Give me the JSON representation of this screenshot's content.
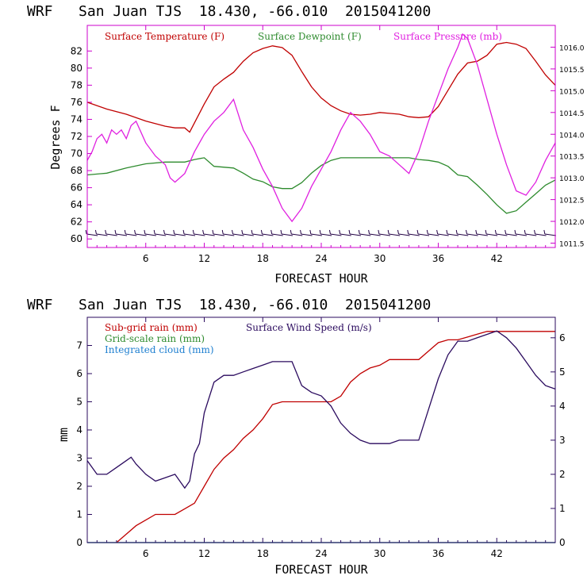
{
  "chart_data": [
    {
      "type": "line",
      "title": "WRF   San Juan TJS  18.430, -66.010  2015041200",
      "xlabel": "FORECAST HOUR",
      "ylabel": "Degrees F",
      "y2label": "",
      "xlim": [
        0,
        48
      ],
      "ylim": [
        59,
        85
      ],
      "y2lim": [
        1011.4,
        1016.5
      ],
      "xticks": [
        "6",
        "12",
        "18",
        "24",
        "30",
        "36",
        "42"
      ],
      "yticks": [
        "60",
        "62",
        "64",
        "66",
        "68",
        "70",
        "72",
        "74",
        "76",
        "78",
        "80",
        "82"
      ],
      "y2ticks": [
        "1011.5",
        "1012.0",
        "1012.5",
        "1013.0",
        "1013.5",
        "1014.0",
        "1014.5",
        "1015.0",
        "1015.5",
        "1016.0"
      ],
      "grid": false,
      "legend_position": "top",
      "colors": {
        "temperature": "#c00000",
        "dewpoint": "#2e8b2e",
        "pressure": "#e020e0",
        "wind_barbs": "#220044"
      },
      "series": [
        {
          "name": "Surface Temperature (F)",
          "axis": "left",
          "x": [
            0,
            2,
            4,
            6,
            8,
            9,
            10,
            10.5,
            11,
            12,
            13,
            14,
            15,
            16,
            17,
            18,
            19,
            20,
            21,
            22,
            23,
            24,
            25,
            26,
            27,
            28,
            29,
            30,
            31,
            32,
            33,
            34,
            35,
            36,
            37,
            38,
            39,
            40,
            41,
            42,
            43,
            44,
            45,
            46,
            47,
            48
          ],
          "values": [
            76,
            75.2,
            74.6,
            73.8,
            73.2,
            73.0,
            73.0,
            72.5,
            73.6,
            75.8,
            77.8,
            78.7,
            79.5,
            80.8,
            81.8,
            82.3,
            82.6,
            82.4,
            81.5,
            79.6,
            77.8,
            76.5,
            75.6,
            75.0,
            74.6,
            74.5,
            74.6,
            74.8,
            74.7,
            74.6,
            74.3,
            74.2,
            74.3,
            75.5,
            77.4,
            79.3,
            80.6,
            80.8,
            81.5,
            82.8,
            83.0,
            82.8,
            82.3,
            80.8,
            79.2,
            78.0
          ]
        },
        {
          "name": "Surface Dewpoint (F)",
          "axis": "left",
          "x": [
            0,
            2,
            4,
            6,
            8,
            10,
            11,
            12,
            13,
            15,
            16,
            17,
            18,
            19,
            20,
            21,
            22,
            23,
            24,
            25,
            26,
            27,
            28,
            30,
            33,
            34,
            35,
            36,
            37,
            38,
            39,
            40,
            41,
            42,
            43,
            44,
            45,
            46,
            47,
            48
          ],
          "values": [
            67.5,
            67.7,
            68.3,
            68.8,
            69.0,
            69.0,
            69.3,
            69.5,
            68.5,
            68.3,
            67.7,
            67.0,
            66.7,
            66.1,
            65.9,
            65.9,
            66.6,
            67.7,
            68.6,
            69.2,
            69.5,
            69.5,
            69.5,
            69.5,
            69.5,
            69.3,
            69.2,
            69.0,
            68.5,
            67.5,
            67.3,
            66.3,
            65.2,
            64.0,
            63.0,
            63.3,
            64.3,
            65.3,
            66.3,
            66.9
          ]
        },
        {
          "name": "Surface Pressure (mb)",
          "axis": "right",
          "x": [
            0,
            0.5,
            1,
            1.5,
            2,
            2.5,
            3,
            3.5,
            4,
            4.5,
            5,
            6,
            7,
            8,
            8.5,
            9,
            10,
            11,
            12,
            13,
            14,
            15,
            16,
            17,
            18,
            19,
            20,
            21,
            22,
            23,
            24,
            25,
            26,
            27,
            28,
            29,
            30,
            31,
            32,
            33,
            34,
            35,
            36,
            37,
            38,
            38.5,
            39,
            40,
            41,
            42,
            43,
            44,
            45,
            46,
            47,
            48
          ],
          "values": [
            1013.4,
            1013.6,
            1013.9,
            1014.0,
            1013.8,
            1014.1,
            1014.0,
            1014.1,
            1013.9,
            1014.2,
            1014.3,
            1013.8,
            1013.5,
            1013.3,
            1013.0,
            1012.9,
            1013.1,
            1013.6,
            1014.0,
            1014.3,
            1014.5,
            1014.8,
            1014.1,
            1013.7,
            1013.2,
            1012.8,
            1012.3,
            1012.0,
            1012.3,
            1012.8,
            1013.2,
            1013.6,
            1014.1,
            1014.5,
            1014.3,
            1014.0,
            1013.6,
            1013.5,
            1013.3,
            1013.1,
            1013.6,
            1014.3,
            1014.9,
            1015.5,
            1016.0,
            1016.3,
            1016.2,
            1015.6,
            1014.8,
            1014.0,
            1013.3,
            1012.7,
            1012.6,
            1012.9,
            1013.4,
            1013.8
          ]
        }
      ]
    },
    {
      "type": "line",
      "title": "WRF   San Juan TJS  18.430, -66.010  2015041200",
      "xlabel": "FORECAST HOUR",
      "ylabel": "mm",
      "xlim": [
        0,
        48
      ],
      "ylim": [
        0,
        8
      ],
      "y2lim": [
        0,
        6.6
      ],
      "xticks": [
        "6",
        "12",
        "18",
        "24",
        "30",
        "36",
        "42"
      ],
      "yticks": [
        "0",
        "1",
        "2",
        "3",
        "4",
        "5",
        "6",
        "7"
      ],
      "y2ticks": [
        "0",
        "1",
        "2",
        "3",
        "4",
        "5",
        "6"
      ],
      "grid": false,
      "legend_position": "top",
      "colors": {
        "subgrid": "#c00000",
        "gridscale": "#2e8b2e",
        "cloud": "#1e7fd0",
        "wind": "#2a0a5e"
      },
      "legend": [
        "Sub-grid rain (mm)",
        "Grid-scale rain (mm)",
        "Integrated cloud (mm)",
        "Surface Wind Speed (m/s)"
      ],
      "series": [
        {
          "name": "Sub-grid rain (mm)",
          "axis": "left",
          "x": [
            3,
            4,
            5,
            6,
            7,
            8,
            9,
            10,
            11,
            12,
            13,
            14,
            15,
            16,
            17,
            18,
            19,
            20,
            21,
            22,
            23,
            24,
            25,
            26,
            27,
            28,
            29,
            30,
            31,
            32,
            33,
            34,
            35,
            36,
            37,
            38,
            39,
            40,
            41,
            42,
            48
          ],
          "values": [
            0,
            0.3,
            0.6,
            0.8,
            1.0,
            1.0,
            1.0,
            1.2,
            1.4,
            2.0,
            2.6,
            3.0,
            3.3,
            3.7,
            4.0,
            4.4,
            4.9,
            5.0,
            5.0,
            5.0,
            5.0,
            5.0,
            5.0,
            5.2,
            5.7,
            6.0,
            6.2,
            6.3,
            6.5,
            6.5,
            6.5,
            6.5,
            6.8,
            7.1,
            7.2,
            7.2,
            7.3,
            7.4,
            7.5,
            7.5,
            7.5
          ]
        },
        {
          "name": "Grid-scale rain (mm)",
          "axis": "left",
          "x": [
            0,
            48
          ],
          "values": [
            0,
            0
          ]
        },
        {
          "name": "Integrated cloud (mm)",
          "axis": "left",
          "x": [
            0,
            48
          ],
          "values": [
            0,
            0
          ]
        },
        {
          "name": "Surface Wind Speed (m/s)",
          "axis": "right",
          "x": [
            0,
            1,
            2,
            3,
            4,
            4.5,
            5,
            6,
            7,
            8,
            9,
            10,
            10.5,
            11,
            11.5,
            12,
            13,
            14,
            15,
            16,
            17,
            18,
            19,
            20,
            21,
            22,
            23,
            24,
            25,
            26,
            27,
            28,
            29,
            30,
            31,
            32,
            33,
            34,
            35,
            36,
            37,
            38,
            39,
            40,
            41,
            42,
            43,
            44,
            45,
            46,
            47,
            48
          ],
          "values": [
            2.4,
            2.0,
            2.0,
            2.2,
            2.4,
            2.5,
            2.3,
            2.0,
            1.8,
            1.9,
            2.0,
            1.6,
            1.8,
            2.6,
            2.9,
            3.8,
            4.7,
            4.9,
            4.9,
            5.0,
            5.1,
            5.2,
            5.3,
            5.3,
            5.3,
            4.6,
            4.4,
            4.3,
            4.0,
            3.5,
            3.2,
            3.0,
            2.9,
            2.9,
            2.9,
            3.0,
            3.0,
            3.0,
            3.9,
            4.8,
            5.5,
            5.9,
            5.9,
            6.0,
            6.1,
            6.2,
            6.0,
            5.7,
            5.3,
            4.9,
            4.6,
            4.5
          ]
        }
      ]
    }
  ]
}
